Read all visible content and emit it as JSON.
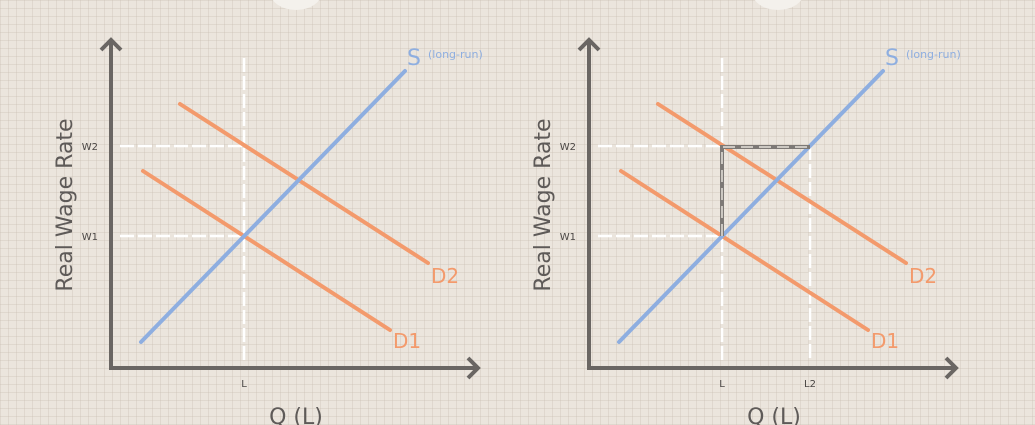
{
  "colors": {
    "supply": "#8eaee0",
    "demand": "#f39a6c",
    "axis": "#6a6663",
    "guide": "#ffffff",
    "background": "#ebe5dd"
  },
  "left_panel": {
    "y_axis_label": "Real Wage Rate",
    "x_axis_label": "Q (L)",
    "y_ticks": [
      "W2",
      "W1"
    ],
    "x_ticks": [
      "L"
    ],
    "supply_label": "S",
    "supply_note": "(long-run)",
    "demand_labels": [
      "D1",
      "D2"
    ]
  },
  "right_panel": {
    "y_axis_label": "Real Wage Rate",
    "x_axis_label": "Q (L)",
    "y_ticks": [
      "W2",
      "W1"
    ],
    "x_ticks": [
      "L",
      "L2"
    ],
    "supply_label": "S",
    "supply_note": "(long-run)",
    "demand_labels": [
      "D1",
      "D2"
    ]
  }
}
